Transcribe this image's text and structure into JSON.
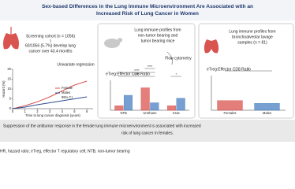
{
  "header": {
    "title_lines": [
      "Sex-based Differences in the Lung Immune Microenvironment Are Associated with an",
      "Increased Risk of Lung Cancer in Women"
    ]
  },
  "left": {
    "cohort": "Screening cohort (n = 1056)",
    "outcome_lines": [
      "60/1056 (5.7%) develop lung",
      "cancer over 43.4 months"
    ],
    "method": "Univariate regression",
    "hazard": {
      "type": "line",
      "y_label": "Hazard (%)",
      "x_label": "Time to lung cancer diagnosis (years)",
      "ci_label": "95% CI",
      "x": [
        0,
        1,
        2,
        3,
        4,
        5,
        6
      ],
      "xlim": [
        0,
        6.5
      ],
      "xticks": [
        0,
        1,
        2,
        3,
        4,
        5,
        6
      ],
      "ylim": [
        0,
        20
      ],
      "yticks": [
        0,
        5,
        10,
        15,
        20
      ],
      "series": [
        {
          "name": "Female",
          "color": "#d9534f",
          "values": [
            0,
            1.5,
            3.5,
            6,
            9,
            12,
            14
          ]
        },
        {
          "name": "Males",
          "color": "#2c4d8f",
          "values": [
            0,
            0.8,
            2,
            3,
            4,
            5,
            6
          ]
        }
      ]
    }
  },
  "middle": {
    "heading_lines": [
      "Lung immune profiles from",
      "non-tumor bearing and",
      "tumor bearing mice"
    ],
    "method": "Flow cytometry",
    "chart": {
      "type": "bar",
      "title": "eTreg:Effector CD8 Ratio",
      "categories": [
        "NTB",
        "Urethane",
        "Kras"
      ],
      "ylim": [
        0,
        1
      ],
      "series": [
        {
          "color": "#d9534f",
          "values": [
            0.15,
            0.75,
            0.15
          ]
        },
        {
          "color": "#4a7fc1",
          "values": [
            0.5,
            0.25,
            0.4
          ]
        }
      ],
      "significance": [
        "****",
        "****",
        "****",
        "*"
      ]
    }
  },
  "right": {
    "heading_lines": [
      "Lung immune profiles from",
      "bronchoalveolar lavage",
      "samples (n = 81)"
    ],
    "chart": {
      "type": "bar",
      "title": "eTreg:Effector CD8 Ratio",
      "categories": [
        "Females",
        "Males"
      ],
      "ylim": [
        0,
        1
      ],
      "colors": [
        "#d9534f",
        "#4a7fc1"
      ],
      "values": [
        0.28,
        0.2
      ],
      "significance": "*"
    }
  },
  "conclusion_lines": [
    "Suppression of the antitumor response in the female lung immune microenvironment is associated with increased",
    "risk of lung cancer in females."
  ],
  "footnote": "HR, hazard ratio; eTreg, effector T regulatory cell; NTB, non-tumor bearing"
}
